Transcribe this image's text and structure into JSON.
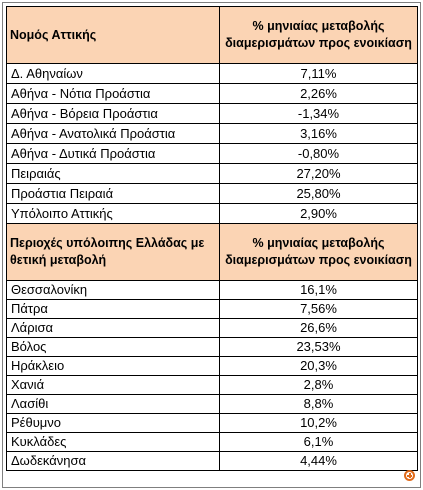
{
  "attica": {
    "header": {
      "name": "Νομός Αττικής",
      "value": "% μηνιαίας μεταβολής διαμερισμάτων προς ενοικίαση"
    },
    "rows": [
      {
        "name": "Δ. Αθηναίων",
        "value": "7,11%"
      },
      {
        "name": "Αθήνα - Νότια Προάστια",
        "value": "2,26%"
      },
      {
        "name": "Αθήνα - Βόρεια Προάστια",
        "value": "-1,34%"
      },
      {
        "name": "Αθήνα - Ανατολικά Προάστια",
        "value": "3,16%"
      },
      {
        "name": "Αθήνα - Δυτικά Προάστια",
        "value": "-0,80%"
      },
      {
        "name": "Πειραιάς",
        "value": "27,20%"
      },
      {
        "name": "Προάστια Πειραιά",
        "value": "25,80%"
      },
      {
        "name": "Υπόλοιπο Αττικής",
        "value": "2,90%"
      }
    ]
  },
  "rest_of_greece": {
    "header": {
      "name": "Περιοχές υπόλοιπης Ελλάδας με θετική μεταβολή",
      "value": "% μηνιαίας μεταβολής διαμερισμάτων προς ενοικίαση"
    },
    "rows": [
      {
        "name": "Θεσσαλονίκη",
        "value": "16,1%"
      },
      {
        "name": "Πάτρα",
        "value": "7,56%"
      },
      {
        "name": "Λάρισα",
        "value": "26,6%"
      },
      {
        "name": "Βόλος",
        "value": "23,53%"
      },
      {
        "name": "Ηράκλειο",
        "value": "20,3%"
      },
      {
        "name": "Χανιά",
        "value": "2,8%"
      },
      {
        "name": "Λασίθι",
        "value": "8,8%"
      },
      {
        "name": "Ρέθυμνο",
        "value": "10,2%"
      },
      {
        "name": "Κυκλάδες",
        "value": "6,1%"
      },
      {
        "name": "Δωδεκάνησα",
        "value": "4,44%"
      }
    ]
  },
  "colors": {
    "header_fill": "#fbd4b4",
    "zoom_icon": "#e06a1a"
  },
  "icons": {
    "zoom": "zoom-in-icon"
  }
}
